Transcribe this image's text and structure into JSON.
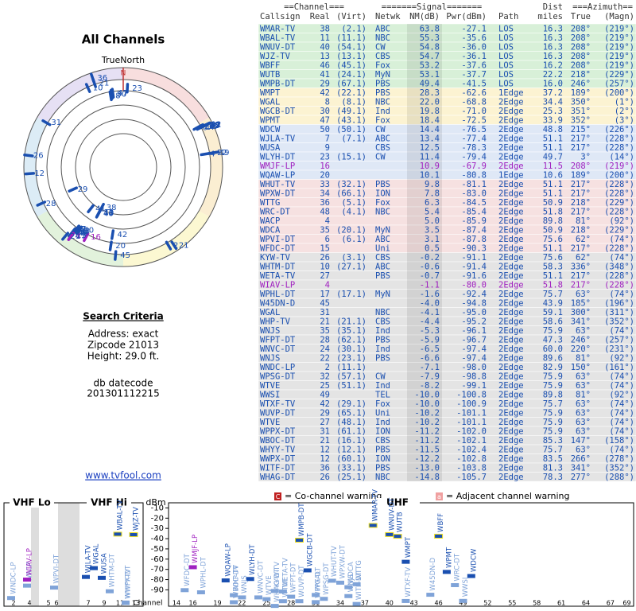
{
  "left": {
    "title": "All Channels",
    "north_label": "TrueNorth",
    "north_mark": "N",
    "criteria_title": "Search Criteria",
    "criteria": [
      "Address: exact",
      "Zipcode 21013",
      "Height: 29.0 ft."
    ],
    "db_title": "db datecode",
    "db_code": "201301112215",
    "link": "www.tvfool.com"
  },
  "table": {
    "groups": [
      "==Channel===",
      "=======Signal=======",
      "Dist",
      "===Azimuth=="
    ],
    "columns": [
      "Callsign",
      "Real",
      "(Virt)",
      "Netwk",
      "NM(dB)",
      "Pwr(dBm)",
      "Path",
      "miles",
      "True",
      "(Magn)"
    ],
    "rows": [
      [
        "WMAR-TV",
        "38",
        "(2.1)",
        "ABC",
        "63.8",
        "-27.1",
        "LOS",
        "16.3",
        "208°",
        "(219°)"
      ],
      [
        "WBAL-TV",
        "11",
        "(11.1)",
        "NBC",
        "55.3",
        "-35.6",
        "LOS",
        "16.3",
        "208°",
        "(219°)"
      ],
      [
        "WNUV-DT",
        "40",
        "(54.1)",
        "CW",
        "54.8",
        "-36.0",
        "LOS",
        "16.3",
        "208°",
        "(219°)"
      ],
      [
        "WJZ-TV",
        "13",
        "(13.1)",
        "CBS",
        "54.7",
        "-36.1",
        "LOS",
        "16.3",
        "208°",
        "(219°)"
      ],
      [
        "WBFF",
        "46",
        "(45.1)",
        "Fox",
        "53.2",
        "-37.6",
        "LOS",
        "16.2",
        "208°",
        "(219°)"
      ],
      [
        "WUTB",
        "41",
        "(24.1)",
        "MyN",
        "53.1",
        "-37.7",
        "LOS",
        "22.2",
        "218°",
        "(229°)"
      ],
      [
        "WMPB-DT",
        "29",
        "(67.1)",
        "PBS",
        "49.4",
        "-41.5",
        "LOS",
        "16.0",
        "246°",
        "(257°)"
      ],
      [
        "WMPT",
        "42",
        "(22.1)",
        "PBS",
        "28.3",
        "-62.6",
        "1Edge",
        "37.2",
        "189°",
        "(200°)"
      ],
      [
        "WGAL",
        "8",
        "(8.1)",
        "NBC",
        "22.0",
        "-68.8",
        "2Edge",
        "34.4",
        "350°",
        "(1°)"
      ],
      [
        "WGCB-DT",
        "30",
        "(49.1)",
        "Ind",
        "19.8",
        "-71.0",
        "2Edge",
        "25.3",
        "351°",
        "(2°)"
      ],
      [
        "WPMT",
        "47",
        "(43.1)",
        "Fox",
        "18.4",
        "-72.5",
        "2Edge",
        "33.9",
        "352°",
        "(3°)"
      ],
      [
        "WDCW",
        "50",
        "(50.1)",
        "CW",
        "14.4",
        "-76.5",
        "2Edge",
        "48.8",
        "215°",
        "(226°)"
      ],
      [
        "WJLA-TV",
        "7",
        "(7.1)",
        "ABC",
        "13.4",
        "-77.4",
        "2Edge",
        "51.1",
        "217°",
        "(228°)"
      ],
      [
        "WUSA",
        "9",
        null,
        "CBS",
        "12.5",
        "-78.3",
        "2Edge",
        "51.1",
        "217°",
        "(228°)"
      ],
      [
        "WLYH-DT",
        "23",
        "(15.1)",
        "CW",
        "11.4",
        "-79.4",
        "2Edge",
        "49.7",
        "3°",
        "(14°)"
      ],
      [
        "WMJF-LP",
        "16",
        null,
        null,
        "10.9",
        "-67.9",
        "2Edge",
        "11.5",
        "208°",
        "(219°)"
      ],
      [
        "WQAW-LP",
        "20",
        null,
        null,
        "10.1",
        "-80.8",
        "1Edge",
        "10.6",
        "189°",
        "(200°)"
      ],
      [
        "WHUT-TV",
        "33",
        "(32.1)",
        "PBS",
        "9.8",
        "-81.1",
        "2Edge",
        "51.1",
        "217°",
        "(228°)"
      ],
      [
        "WPXW-DT",
        "34",
        "(66.1)",
        "ION",
        "7.8",
        "-83.0",
        "2Edge",
        "51.1",
        "217°",
        "(228°)"
      ],
      [
        "WTTG",
        "36",
        "(5.1)",
        "Fox",
        "6.3",
        "-84.5",
        "2Edge",
        "50.9",
        "218°",
        "(229°)"
      ],
      [
        "WRC-DT",
        "48",
        "(4.1)",
        "NBC",
        "5.4",
        "-85.4",
        "2Edge",
        "51.8",
        "217°",
        "(228°)"
      ],
      [
        "WACP",
        "4",
        null,
        null,
        "5.0",
        "-85.9",
        "2Edge",
        "89.8",
        "81°",
        "(92°)"
      ],
      [
        "WDCA",
        "35",
        "(20.1)",
        "MyN",
        "3.5",
        "-87.4",
        "2Edge",
        "50.9",
        "218°",
        "(229°)"
      ],
      [
        "WPVI-DT",
        "6",
        "(6.1)",
        "ABC",
        "3.1",
        "-87.8",
        "2Edge",
        "75.6",
        "62°",
        "(74°)"
      ],
      [
        "WFDC-DT",
        "15",
        null,
        "Uni",
        "0.5",
        "-90.3",
        "2Edge",
        "51.1",
        "217°",
        "(228°)"
      ],
      [
        "KYW-TV",
        "26",
        "(3.1)",
        "CBS",
        "-0.2",
        "-91.1",
        "2Edge",
        "75.6",
        "62°",
        "(74°)"
      ],
      [
        "WHTM-DT",
        "10",
        "(27.1)",
        "ABC",
        "-0.6",
        "-91.4",
        "2Edge",
        "58.3",
        "336°",
        "(348°)"
      ],
      [
        "WETA-TV",
        "27",
        null,
        "PBS",
        "-0.7",
        "-91.6",
        "2Edge",
        "51.1",
        "217°",
        "(228°)"
      ],
      [
        "WIAV-LP",
        "4",
        null,
        null,
        "-1.1",
        "-80.0",
        "2Edge",
        "51.8",
        "217°",
        "(228°)"
      ],
      [
        "WPHL-DT",
        "17",
        "(17.1)",
        "MyN",
        "-1.6",
        "-92.4",
        "2Edge",
        "75.7",
        "63°",
        "(74°)"
      ],
      [
        "W45DN-D",
        "45",
        null,
        null,
        "-4.0",
        "-94.8",
        "2Edge",
        "43.9",
        "185°",
        "(196°)"
      ],
      [
        "WGAL",
        "31",
        null,
        "NBC",
        "-4.1",
        "-95.0",
        "2Edge",
        "59.1",
        "300°",
        "(311°)"
      ],
      [
        "WHP-TV",
        "21",
        "(21.1)",
        "CBS",
        "-4.4",
        "-95.2",
        "2Edge",
        "58.6",
        "341°",
        "(352°)"
      ],
      [
        "WNJS",
        "35",
        "(35.1)",
        "Ind",
        "-5.3",
        "-96.1",
        "2Edge",
        "75.9",
        "63°",
        "(74°)"
      ],
      [
        "WFPT-DT",
        "28",
        "(62.1)",
        "PBS",
        "-5.9",
        "-96.7",
        "2Edge",
        "47.3",
        "246°",
        "(257°)"
      ],
      [
        "WNVC-DT",
        "24",
        "(30.1)",
        "Ind",
        "-6.5",
        "-97.4",
        "2Edge",
        "60.0",
        "220°",
        "(231°)"
      ],
      [
        "WNJS",
        "22",
        "(23.1)",
        "PBS",
        "-6.6",
        "-97.4",
        "2Edge",
        "89.6",
        "81°",
        "(92°)"
      ],
      [
        "WNDC-LP",
        "2",
        "(11.1)",
        null,
        "-7.1",
        "-98.0",
        "2Edge",
        "82.9",
        "150°",
        "(161°)"
      ],
      [
        "WPSG-DT",
        "32",
        "(57.1)",
        "CW",
        "-7.9",
        "-98.8",
        "2Edge",
        "75.9",
        "63°",
        "(74°)"
      ],
      [
        "WTVE",
        "25",
        "(51.1)",
        "Ind",
        "-8.2",
        "-99.1",
        "2Edge",
        "75.9",
        "63°",
        "(74°)"
      ],
      [
        "WWSI",
        "49",
        null,
        "TEL",
        "-10.0",
        "-100.8",
        "2Edge",
        "89.8",
        "81°",
        "(92°)"
      ],
      [
        "WTXF-TV",
        "42",
        "(29.1)",
        "Fox",
        "-10.0",
        "-100.9",
        "2Edge",
        "75.7",
        "63°",
        "(74°)"
      ],
      [
        "WUVP-DT",
        "29",
        "(65.1)",
        "Uni",
        "-10.2",
        "-101.1",
        "2Edge",
        "75.9",
        "63°",
        "(74°)"
      ],
      [
        "WTVE",
        "27",
        "(48.1)",
        "Ind",
        "-10.2",
        "-101.1",
        "2Edge",
        "75.9",
        "63°",
        "(74°)"
      ],
      [
        "WPPX-DT",
        "31",
        "(61.1)",
        "ION",
        "-11.2",
        "-102.0",
        "2Edge",
        "75.9",
        "63°",
        "(74°)"
      ],
      [
        "WBOC-DT",
        "21",
        "(16.1)",
        "CBS",
        "-11.2",
        "-102.1",
        "2Edge",
        "85.3",
        "147°",
        "(158°)"
      ],
      [
        "WHYY-TV",
        "12",
        "(12.1)",
        "PBS",
        "-11.5",
        "-102.4",
        "2Edge",
        "75.7",
        "63°",
        "(74°)"
      ],
      [
        "WWPX-DT",
        "12",
        "(60.1)",
        "ION",
        "-12.2",
        "-102.8",
        "2Edge",
        "83.5",
        "266°",
        "(278°)"
      ],
      [
        "WITF-DT",
        "36",
        "(33.1)",
        "PBS",
        "-13.0",
        "-103.8",
        "2Edge",
        "81.3",
        "341°",
        "(352°)"
      ],
      [
        "WHAG-DT",
        "26",
        "(25.1)",
        "NBC",
        "-14.8",
        "-105.7",
        "2Edge",
        "78.3",
        "277°",
        "(288°)"
      ]
    ]
  },
  "legend": [
    {
      "icon": "C",
      "text": "= Co-channel warning"
    },
    {
      "icon": "a",
      "text": "= Adjacent channel warning"
    }
  ],
  "spectrum": {
    "bands": [
      "VHF Lo",
      "VHF Hi",
      "UHF"
    ],
    "y_label": "dBm",
    "x_label": "Channel",
    "ylim": [
      -5,
      -106
    ],
    "yticks": [
      -10,
      -20,
      -30,
      -40,
      -50,
      -60,
      -70,
      -80,
      -90
    ],
    "vhf_ticks": [
      2,
      4,
      5,
      6,
      7,
      9,
      11,
      13
    ],
    "uhf_ticks": [
      14,
      16,
      19,
      22,
      25,
      28,
      31,
      34,
      37,
      40,
      43,
      46,
      49,
      52,
      55,
      58,
      61,
      64,
      67,
      69
    ]
  }
}
